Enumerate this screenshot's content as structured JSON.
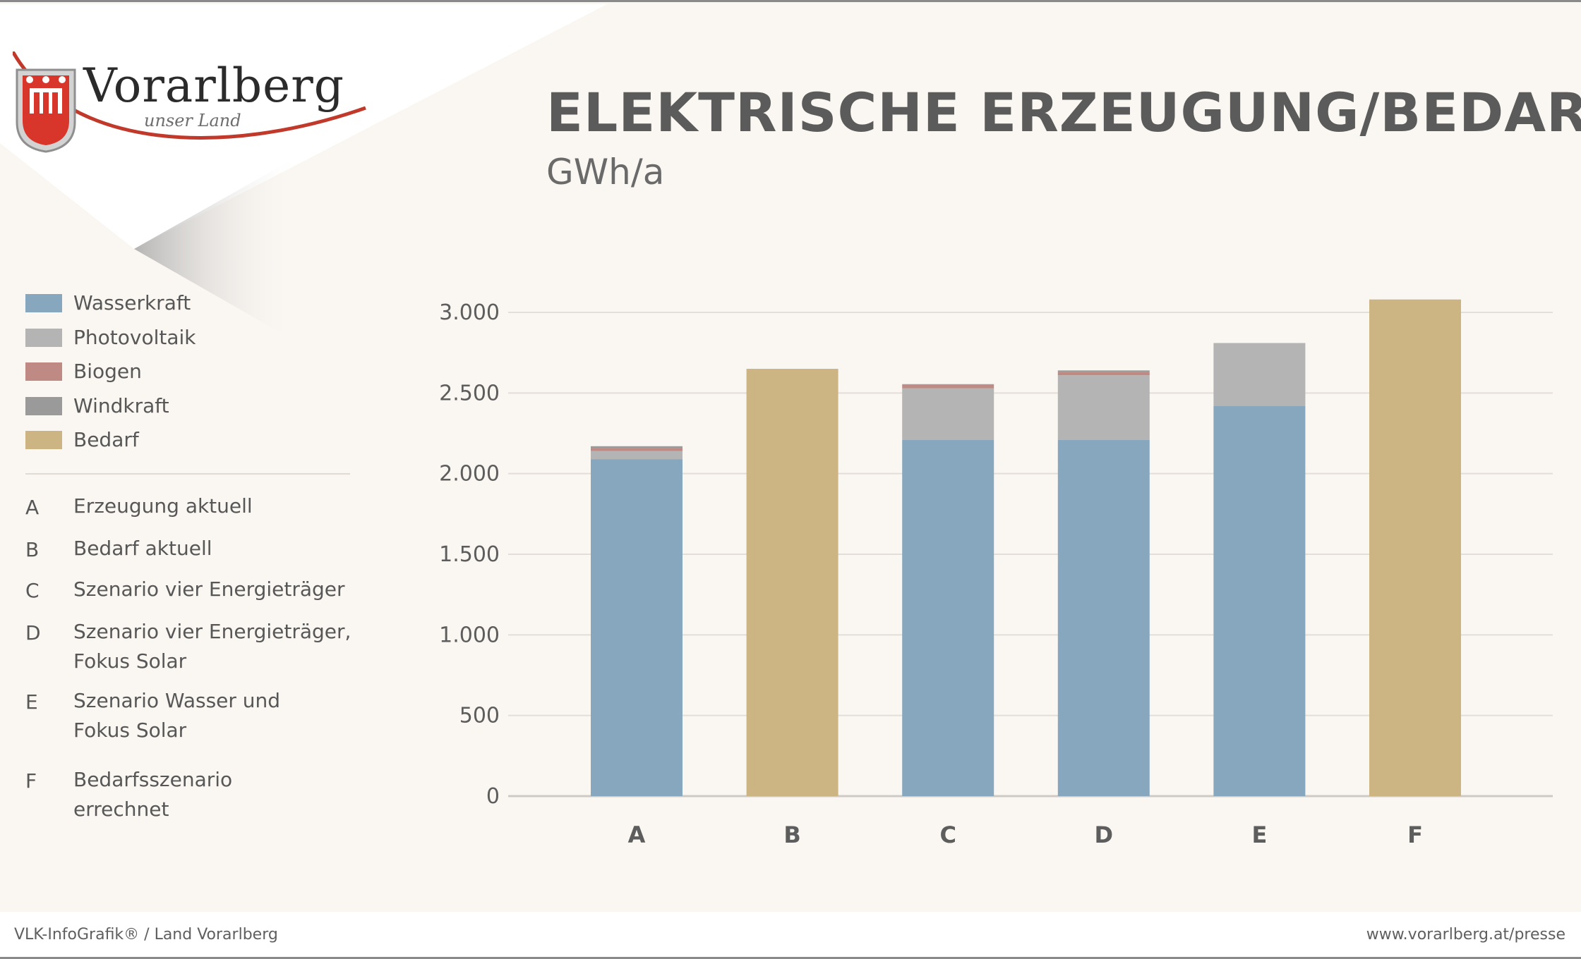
{
  "logo": {
    "name": "Vorarlberg",
    "tagline": "unser Land"
  },
  "title": "ELEKTRISCHE ERZEUGUNG/BEDARF",
  "subtitle": "GWh/a",
  "legend": [
    {
      "label": "Wasserkraft",
      "color": "#87a7bf"
    },
    {
      "label": "Photovoltaik",
      "color": "#b4b4b4"
    },
    {
      "label": "Biogen",
      "color": "#c08a84"
    },
    {
      "label": "Windkraft",
      "color": "#9a9a9a"
    },
    {
      "label": "Bedarf",
      "color": "#cdb483"
    }
  ],
  "categories_legend": [
    {
      "letter": "A",
      "desc": "Erzeugung aktuell"
    },
    {
      "letter": "B",
      "desc": "Bedarf aktuell"
    },
    {
      "letter": "C",
      "desc": "Szenario vier Energieträger"
    },
    {
      "letter": "D",
      "desc": "Szenario vier Energieträger, Fokus Solar"
    },
    {
      "letter": "E",
      "desc": "Szenario Wasser und Fokus Solar"
    },
    {
      "letter": "F",
      "desc": "Bedarfsszenario errechnet"
    }
  ],
  "chart_data": {
    "type": "bar",
    "stacked": true,
    "categories": [
      "A",
      "B",
      "C",
      "D",
      "E",
      "F"
    ],
    "series": [
      {
        "name": "Wasserkraft",
        "color": "#87a7bf",
        "values": [
          2090,
          0,
          2210,
          2210,
          2420,
          0
        ]
      },
      {
        "name": "Photovoltaik",
        "color": "#b4b4b4",
        "values": [
          50,
          0,
          320,
          400,
          390,
          0
        ]
      },
      {
        "name": "Biogen",
        "color": "#c08a84",
        "values": [
          20,
          0,
          20,
          20,
          0,
          0
        ]
      },
      {
        "name": "Windkraft",
        "color": "#9a9a9a",
        "values": [
          10,
          0,
          5,
          10,
          0,
          0
        ]
      },
      {
        "name": "Bedarf",
        "color": "#cdb483",
        "values": [
          0,
          2650,
          0,
          0,
          0,
          3080
        ]
      }
    ],
    "yticks": [
      0,
      500,
      1000,
      1500,
      2000,
      2500,
      3000
    ],
    "ytick_labels": [
      "0",
      "500",
      "1.000",
      "1.500",
      "2.000",
      "2.500",
      "3.000"
    ],
    "ylim": [
      0,
      3000
    ],
    "grid": true,
    "legend_placement": "left"
  },
  "footer": {
    "left": "VLK-InfoGrafik® / Land Vorarlberg",
    "right": "www.vorarlberg.at/presse"
  }
}
